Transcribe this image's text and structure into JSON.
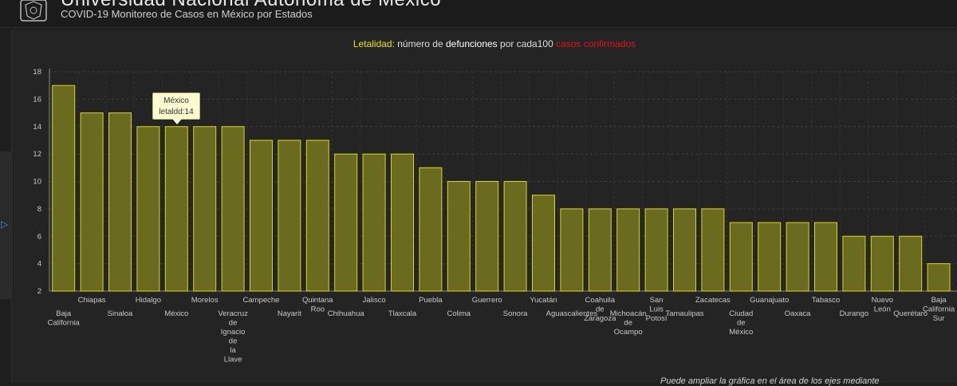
{
  "header": {
    "title": "Universidad Nacional Autónoma de México",
    "subtitle": "COVID-19 Monitoreo de Casos en México por Estados"
  },
  "heading": {
    "part1": "Letalidad:",
    "part2": " número de ",
    "part3": "defunciones",
    "part4": " por cada100 ",
    "part5": "casos confirmados"
  },
  "tooltip": {
    "line1": "México",
    "line2": "letaldd:14"
  },
  "footnote": "Puede ampliar la gráfica en el área de los ejes mediante",
  "colors": {
    "bar_fill": "#6b6b1f",
    "bar_stroke": "#d8d81c",
    "title_yellow": "#e6e200",
    "title_red": "#e01414"
  },
  "chart_data": {
    "type": "bar",
    "title": "Letalidad: número de defunciones por cada100 casos confirmados",
    "xlabel": "",
    "ylabel": "",
    "ylim": [
      2,
      18
    ],
    "yticks": [
      2,
      4,
      6,
      8,
      10,
      12,
      14,
      16,
      18
    ],
    "grid": true,
    "categories": [
      "Baja California",
      "Chiapas",
      "Sinaloa",
      "Hidalgo",
      "México",
      "Morelos",
      "Veracruz de Ignacio de la Llave",
      "Campeche",
      "Nayarit",
      "Quintana Roo",
      "Chihuahua",
      "Jalisco",
      "Tlaxcala",
      "Puebla",
      "Colima",
      "Guerrero",
      "Sonora",
      "Yucatán",
      "Aguascalientes",
      "Coahuila de Zaragoza",
      "Michoacán de Ocampo",
      "San Luis Potosí",
      "Tamaulipas",
      "Zacatecas",
      "Ciudad de México",
      "Guanajuato",
      "Oaxaca",
      "Tabasco",
      "Durango",
      "Nuevo León",
      "Querétaro",
      "Baja California Sur"
    ],
    "category_lines": [
      [
        "Baja",
        "California"
      ],
      [
        "Chiapas"
      ],
      [
        "Sinaloa"
      ],
      [
        "Hidalgo"
      ],
      [
        "México"
      ],
      [
        "Morelos"
      ],
      [
        "Veracruz",
        "de",
        "Ignacio",
        "de",
        "la",
        "Llave"
      ],
      [
        "Campeche"
      ],
      [
        "Nayarit"
      ],
      [
        "Quintana",
        "Roo"
      ],
      [
        "Chihuahua"
      ],
      [
        "Jalisco"
      ],
      [
        "Tlaxcala"
      ],
      [
        "Puebla"
      ],
      [
        "Colima"
      ],
      [
        "Guerrero"
      ],
      [
        "Sonora"
      ],
      [
        "Yucatán"
      ],
      [
        "Aguascalientes"
      ],
      [
        "Coahuila",
        "de",
        "Zaragoza"
      ],
      [
        "Michoacán",
        "de",
        "Ocampo"
      ],
      [
        "San",
        "Luis",
        "Potosí"
      ],
      [
        "Tamaulipas"
      ],
      [
        "Zacatecas"
      ],
      [
        "Ciudad",
        "de",
        "México"
      ],
      [
        "Guanajuato"
      ],
      [
        "Oaxaca"
      ],
      [
        "Tabasco"
      ],
      [
        "Durango"
      ],
      [
        "Nuevo",
        "León"
      ],
      [
        "Querétaro"
      ],
      [
        "Baja",
        "California",
        "Sur"
      ]
    ],
    "values": [
      17,
      15,
      15,
      14,
      14,
      14,
      14,
      13,
      13,
      13,
      12,
      12,
      12,
      11,
      10,
      10,
      10,
      9,
      8,
      8,
      8,
      8,
      8,
      8,
      7,
      7,
      7,
      7,
      6,
      6,
      6,
      4
    ]
  }
}
